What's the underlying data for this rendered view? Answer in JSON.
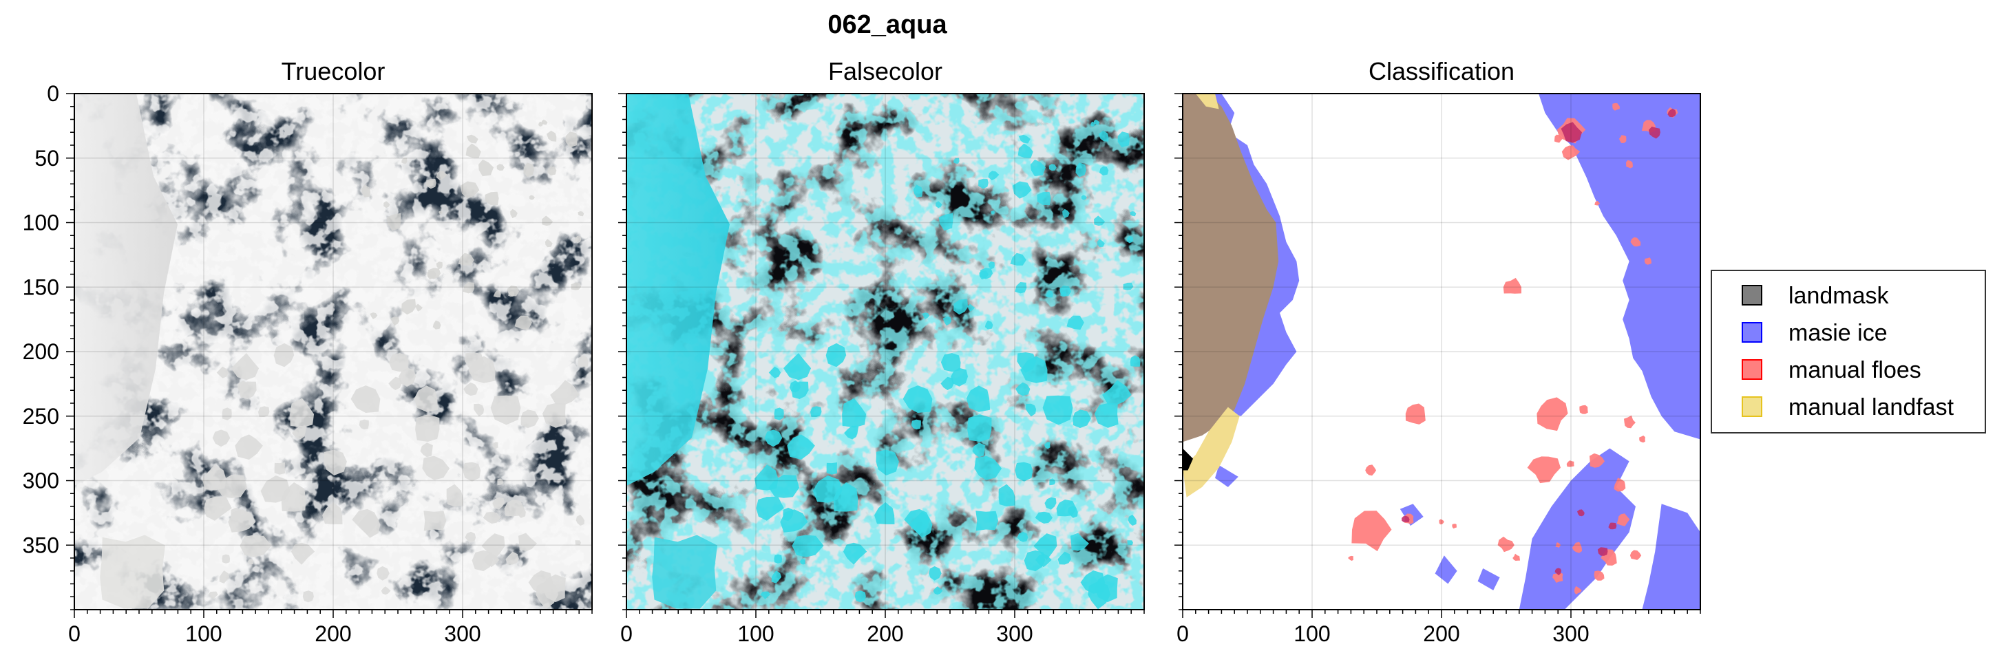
{
  "figure": {
    "title": "062_aqua"
  },
  "panels": [
    {
      "id": "truecolor",
      "title": "Truecolor",
      "kind": "truecolor",
      "show_y_ticks": true
    },
    {
      "id": "falsecolor",
      "title": "Falsecolor",
      "kind": "falsecolor",
      "show_y_ticks": false
    },
    {
      "id": "classification",
      "title": "Classification",
      "kind": "classification",
      "show_y_ticks": false
    }
  ],
  "axes": {
    "x_range": [
      0,
      400
    ],
    "y_range": [
      0,
      400
    ],
    "y_inverted": true,
    "x_ticks": [
      "0",
      "100",
      "200",
      "300"
    ],
    "y_ticks": [
      "0",
      "50",
      "100",
      "150",
      "200",
      "250",
      "300",
      "350"
    ],
    "grid": true
  },
  "legend": {
    "placement": "right",
    "items": [
      {
        "label": "landmask",
        "color": "#000000",
        "alpha": 0.5
      },
      {
        "label": "masie ice",
        "color": "#0000ff",
        "alpha": 0.5
      },
      {
        "label": "manual floes",
        "color": "#ff0000",
        "alpha": 0.5
      },
      {
        "label": "manual landfast",
        "color": "#e6c31e",
        "alpha": 0.5
      }
    ]
  },
  "colors": {
    "ocean_dark": "#1b2a3a",
    "cloud_white": "#e8e6e2",
    "false_ocean": "#0a0a0e",
    "false_ice": "#36d9e6",
    "land_brown": "#a78d78",
    "masie_blue": "#7f7fff",
    "floe_red": "#ff7f7f"
  }
}
